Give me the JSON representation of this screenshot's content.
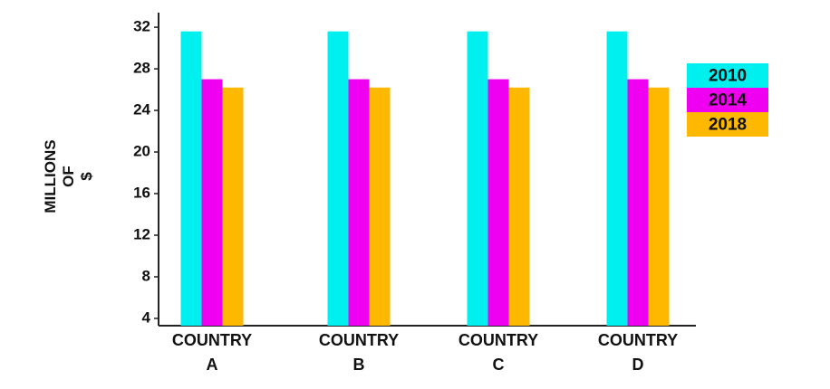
{
  "chart_data": {
    "type": "bar",
    "y_label": "MILLIONS OF $",
    "categories": [
      "COUNTRY A",
      "COUNTRY B",
      "COUNTRY C",
      "COUNTRY D"
    ],
    "series": [
      {
        "name": "2010",
        "color": "#00f0f0",
        "values": [
          31.6,
          31.6,
          31.6,
          31.6
        ]
      },
      {
        "name": "2014",
        "color": "#f000f0",
        "values": [
          27,
          27,
          27,
          27
        ]
      },
      {
        "name": "2018",
        "color": "#ffb800",
        "values": [
          26.2,
          26.2,
          26.2,
          26.2
        ]
      }
    ],
    "ylim": [
      3.3,
      33.4
    ],
    "yticks": [
      4,
      8,
      12,
      16,
      20,
      24,
      28,
      32
    ],
    "grid": false,
    "legend": "right"
  }
}
